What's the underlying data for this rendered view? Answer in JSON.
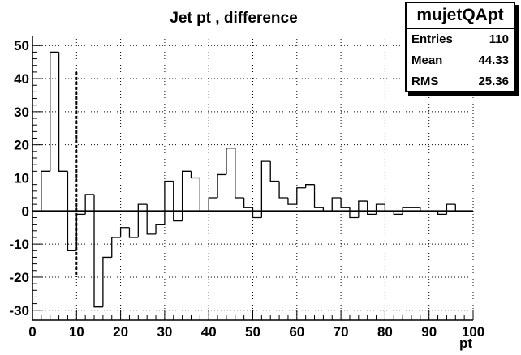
{
  "chart_data": {
    "type": "bar",
    "title": "Jet pt , difference",
    "xlabel": "pt",
    "ylabel": "",
    "xlim": [
      0,
      100
    ],
    "ylim": [
      -33,
      53
    ],
    "bin_width": 2,
    "bin_low_edges": [
      2,
      4,
      6,
      8,
      10,
      12,
      14,
      16,
      18,
      20,
      22,
      24,
      26,
      28,
      30,
      32,
      34,
      36,
      38,
      40,
      42,
      44,
      46,
      48,
      50,
      52,
      54,
      56,
      58,
      60,
      62,
      64,
      66,
      68,
      70,
      72,
      74,
      76,
      78,
      80,
      82,
      84,
      86,
      88,
      90,
      92,
      94,
      96
    ],
    "values": [
      12,
      48,
      12,
      -12,
      -1,
      5,
      -29,
      -14,
      -8,
      -5,
      -8,
      2,
      -7,
      -4,
      9,
      -3,
      12,
      10,
      0,
      4,
      11,
      19,
      4,
      1,
      -2,
      15,
      9,
      4,
      2,
      7,
      8,
      1,
      0,
      4,
      1,
      -2,
      3,
      -1,
      2,
      0,
      -1,
      1,
      1,
      0,
      0,
      -1,
      2,
      0
    ],
    "x_ticks": [
      "0",
      "10",
      "20",
      "30",
      "40",
      "50",
      "60",
      "70",
      "80",
      "90",
      "100"
    ],
    "y_ticks": [
      "-30",
      "-20",
      "-10",
      "0",
      "10",
      "20",
      "30",
      "40",
      "50"
    ],
    "grid": true,
    "line_color": "#000000",
    "annotation": {
      "type": "dashed-vertical-line",
      "x": 10,
      "y_range": [
        -20,
        42
      ]
    },
    "stats_box": {
      "name": "mujetQApt",
      "rows": [
        {
          "label": "Entries",
          "value": "110"
        },
        {
          "label": "Mean",
          "value": "44.33"
        },
        {
          "label": "RMS",
          "value": "25.36"
        }
      ]
    }
  }
}
